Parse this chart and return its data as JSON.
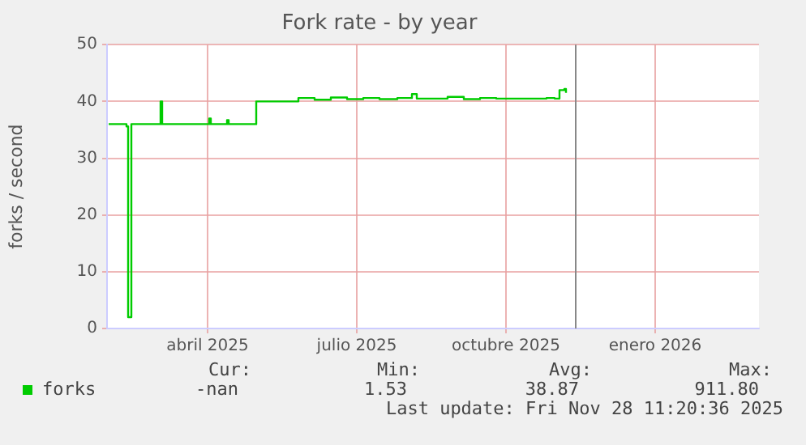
{
  "chart_data": {
    "type": "step",
    "title": "Fork rate - by year",
    "ylabel": "forks / second",
    "x": [
      "2025-02-13",
      "2025-02-24",
      "2025-02-25",
      "2025-02-26",
      "2025-02-27",
      "2025-03-16",
      "2025-03-17",
      "2025-03-18",
      "2025-04-15",
      "2025-04-16",
      "2025-04-17",
      "2025-04-26",
      "2025-04-27",
      "2025-04-28",
      "2025-05-14",
      "2025-05-15",
      "2025-06-04",
      "2025-06-10",
      "2025-06-20",
      "2025-06-30",
      "2025-07-10",
      "2025-07-20",
      "2025-07-30",
      "2025-08-10",
      "2025-08-19",
      "2025-08-22",
      "2025-09-01",
      "2025-09-10",
      "2025-09-20",
      "2025-09-30",
      "2025-10-10",
      "2025-10-20",
      "2025-11-01",
      "2025-11-10",
      "2025-11-15",
      "2025-11-18",
      "2025-11-21",
      "2025-11-22"
    ],
    "series": [
      {
        "name": "forks",
        "color": "#00cc00",
        "values": [
          36,
          35.6,
          2,
          2,
          36,
          36,
          40,
          36,
          36,
          37,
          36,
          36,
          36.7,
          36,
          36,
          40,
          40,
          40.6,
          40.3,
          40.7,
          40.4,
          40.6,
          40.4,
          40.6,
          41.3,
          40.5,
          40.5,
          40.8,
          40.4,
          40.6,
          40.5,
          40.5,
          40.5,
          40.6,
          40.5,
          42,
          42.2,
          41.5
        ]
      }
    ],
    "xlim": [
      "2025-02-12",
      "2026-03-21"
    ],
    "xticks": [
      {
        "value": "2025-04-15",
        "label": "abril 2025"
      },
      {
        "value": "2025-07-16",
        "label": "julio 2025"
      },
      {
        "value": "2025-10-16",
        "label": "octubre 2025"
      },
      {
        "value": "2026-01-16",
        "label": "enero 2026"
      }
    ],
    "ylim": [
      0,
      50
    ],
    "yticks": [
      0,
      10,
      20,
      30,
      40,
      50
    ],
    "grid": true,
    "legend": "bottom left",
    "ref_lines": [
      {
        "axis": "x",
        "value": "2025-11-28",
        "color": "#888888"
      }
    ],
    "annotations": [
      "Cur:",
      "Min:",
      "Avg:",
      "Max:",
      "-nan",
      "1.53",
      "38.87",
      "911.80",
      "Last update: Fri Nov 28 11:20:36 2025"
    ]
  }
}
